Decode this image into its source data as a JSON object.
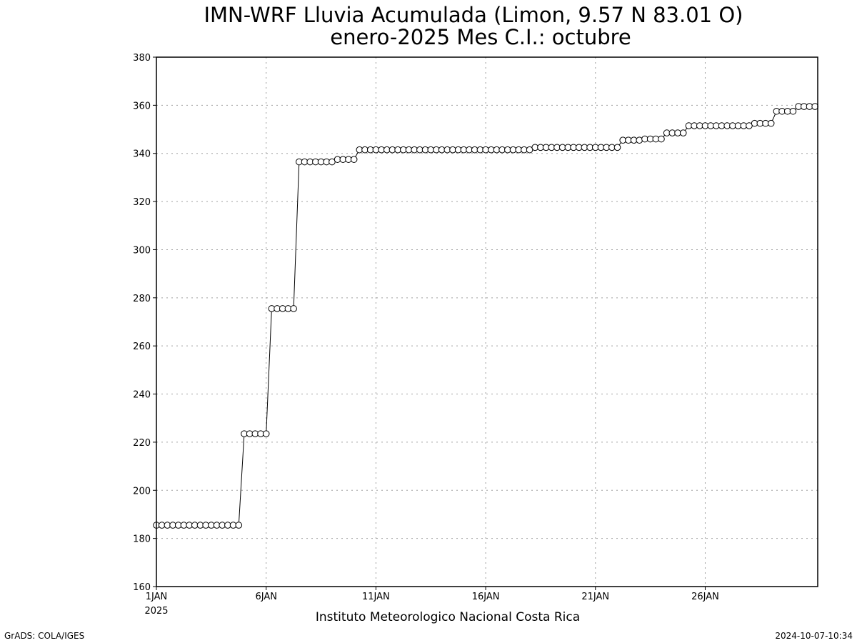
{
  "chart_data": {
    "type": "line",
    "title": "IMN-WRF  Lluvia Acumulada  (Limon, 9.57  N 83.01  O)",
    "subtitle": "enero-2025 Mes C.I.: octubre",
    "xlabel": "",
    "ylabel": "",
    "x_tick_labels": [
      "1JAN",
      "6JAN",
      "11JAN",
      "16JAN",
      "21JAN",
      "26JAN"
    ],
    "x_tick_days": [
      1,
      6,
      11,
      16,
      21,
      26
    ],
    "x_year_label": "2025",
    "x_range": [
      1,
      31.125
    ],
    "ylim": [
      160,
      380
    ],
    "y_ticks": [
      160,
      180,
      200,
      220,
      240,
      260,
      280,
      300,
      320,
      340,
      360,
      380
    ],
    "grid": true,
    "marker": "open-circle",
    "line_color": "#000000",
    "series": [
      {
        "x": [
          1.0,
          1.25,
          1.5,
          1.75,
          2.0,
          2.25,
          2.5,
          2.75,
          3.0,
          3.25,
          3.5,
          3.75,
          4.0,
          4.25,
          4.5,
          4.75,
          5.0,
          5.25,
          5.5,
          5.75,
          6.0,
          6.25,
          6.5,
          6.75,
          7.0,
          7.25,
          7.5,
          7.75,
          8.0,
          8.25,
          8.5,
          8.75,
          9.0,
          9.25,
          9.5,
          9.75,
          10.0,
          10.25,
          10.5,
          10.75,
          11.0,
          11.25,
          11.5,
          11.75,
          12.0,
          12.25,
          12.5,
          12.75,
          13.0,
          13.25,
          13.5,
          13.75,
          14.0,
          14.25,
          14.5,
          14.75,
          15.0,
          15.25,
          15.5,
          15.75,
          16.0,
          16.25,
          16.5,
          16.75,
          17.0,
          17.25,
          17.5,
          17.75,
          18.0,
          18.25,
          18.5,
          18.75,
          19.0,
          19.25,
          19.5,
          19.75,
          20.0,
          20.25,
          20.5,
          20.75,
          21.0,
          21.25,
          21.5,
          21.75,
          22.0,
          22.25,
          22.5,
          22.75,
          23.0,
          23.25,
          23.5,
          23.75,
          24.0,
          24.25,
          24.5,
          24.75,
          25.0,
          25.25,
          25.5,
          25.75,
          26.0,
          26.25,
          26.5,
          26.75,
          27.0,
          27.25,
          27.5,
          27.75,
          28.0,
          28.25,
          28.5,
          28.75,
          29.0,
          29.25,
          29.5,
          29.75,
          30.0,
          30.25,
          30.5,
          30.75,
          31.0
        ],
        "y": [
          185.5,
          185.5,
          185.5,
          185.5,
          185.5,
          185.5,
          185.5,
          185.5,
          185.5,
          185.5,
          185.5,
          185.5,
          185.5,
          185.5,
          185.5,
          185.5,
          223.5,
          223.5,
          223.5,
          223.5,
          223.5,
          275.5,
          275.5,
          275.5,
          275.5,
          275.5,
          336.5,
          336.5,
          336.5,
          336.5,
          336.5,
          336.5,
          336.5,
          337.5,
          337.5,
          337.5,
          337.5,
          341.5,
          341.5,
          341.5,
          341.5,
          341.5,
          341.5,
          341.5,
          341.5,
          341.5,
          341.5,
          341.5,
          341.5,
          341.5,
          341.5,
          341.5,
          341.5,
          341.5,
          341.5,
          341.5,
          341.5,
          341.5,
          341.5,
          341.5,
          341.5,
          341.5,
          341.5,
          341.5,
          341.5,
          341.5,
          341.5,
          341.5,
          341.5,
          342.5,
          342.5,
          342.5,
          342.5,
          342.5,
          342.5,
          342.5,
          342.5,
          342.5,
          342.5,
          342.5,
          342.5,
          342.5,
          342.5,
          342.5,
          342.5,
          345.5,
          345.5,
          345.5,
          345.5,
          346.0,
          346.0,
          346.0,
          346.0,
          348.5,
          348.5,
          348.5,
          348.5,
          351.5,
          351.5,
          351.5,
          351.5,
          351.5,
          351.5,
          351.5,
          351.5,
          351.5,
          351.5,
          351.5,
          351.5,
          352.5,
          352.5,
          352.5,
          352.5,
          357.5,
          357.5,
          357.5,
          357.5,
          359.5,
          359.5,
          359.5,
          359.5
        ]
      }
    ]
  },
  "footer": {
    "institution": "Instituto Meteorologico Nacional Costa Rica",
    "software_credit": "GrADS: COLA/IGES",
    "timestamp": "2024-10-07-10:34"
  },
  "colors": {
    "background": "#ffffff",
    "line": "#000000",
    "grid": "#a0a0a0",
    "marker_fill": "#ffffff"
  }
}
